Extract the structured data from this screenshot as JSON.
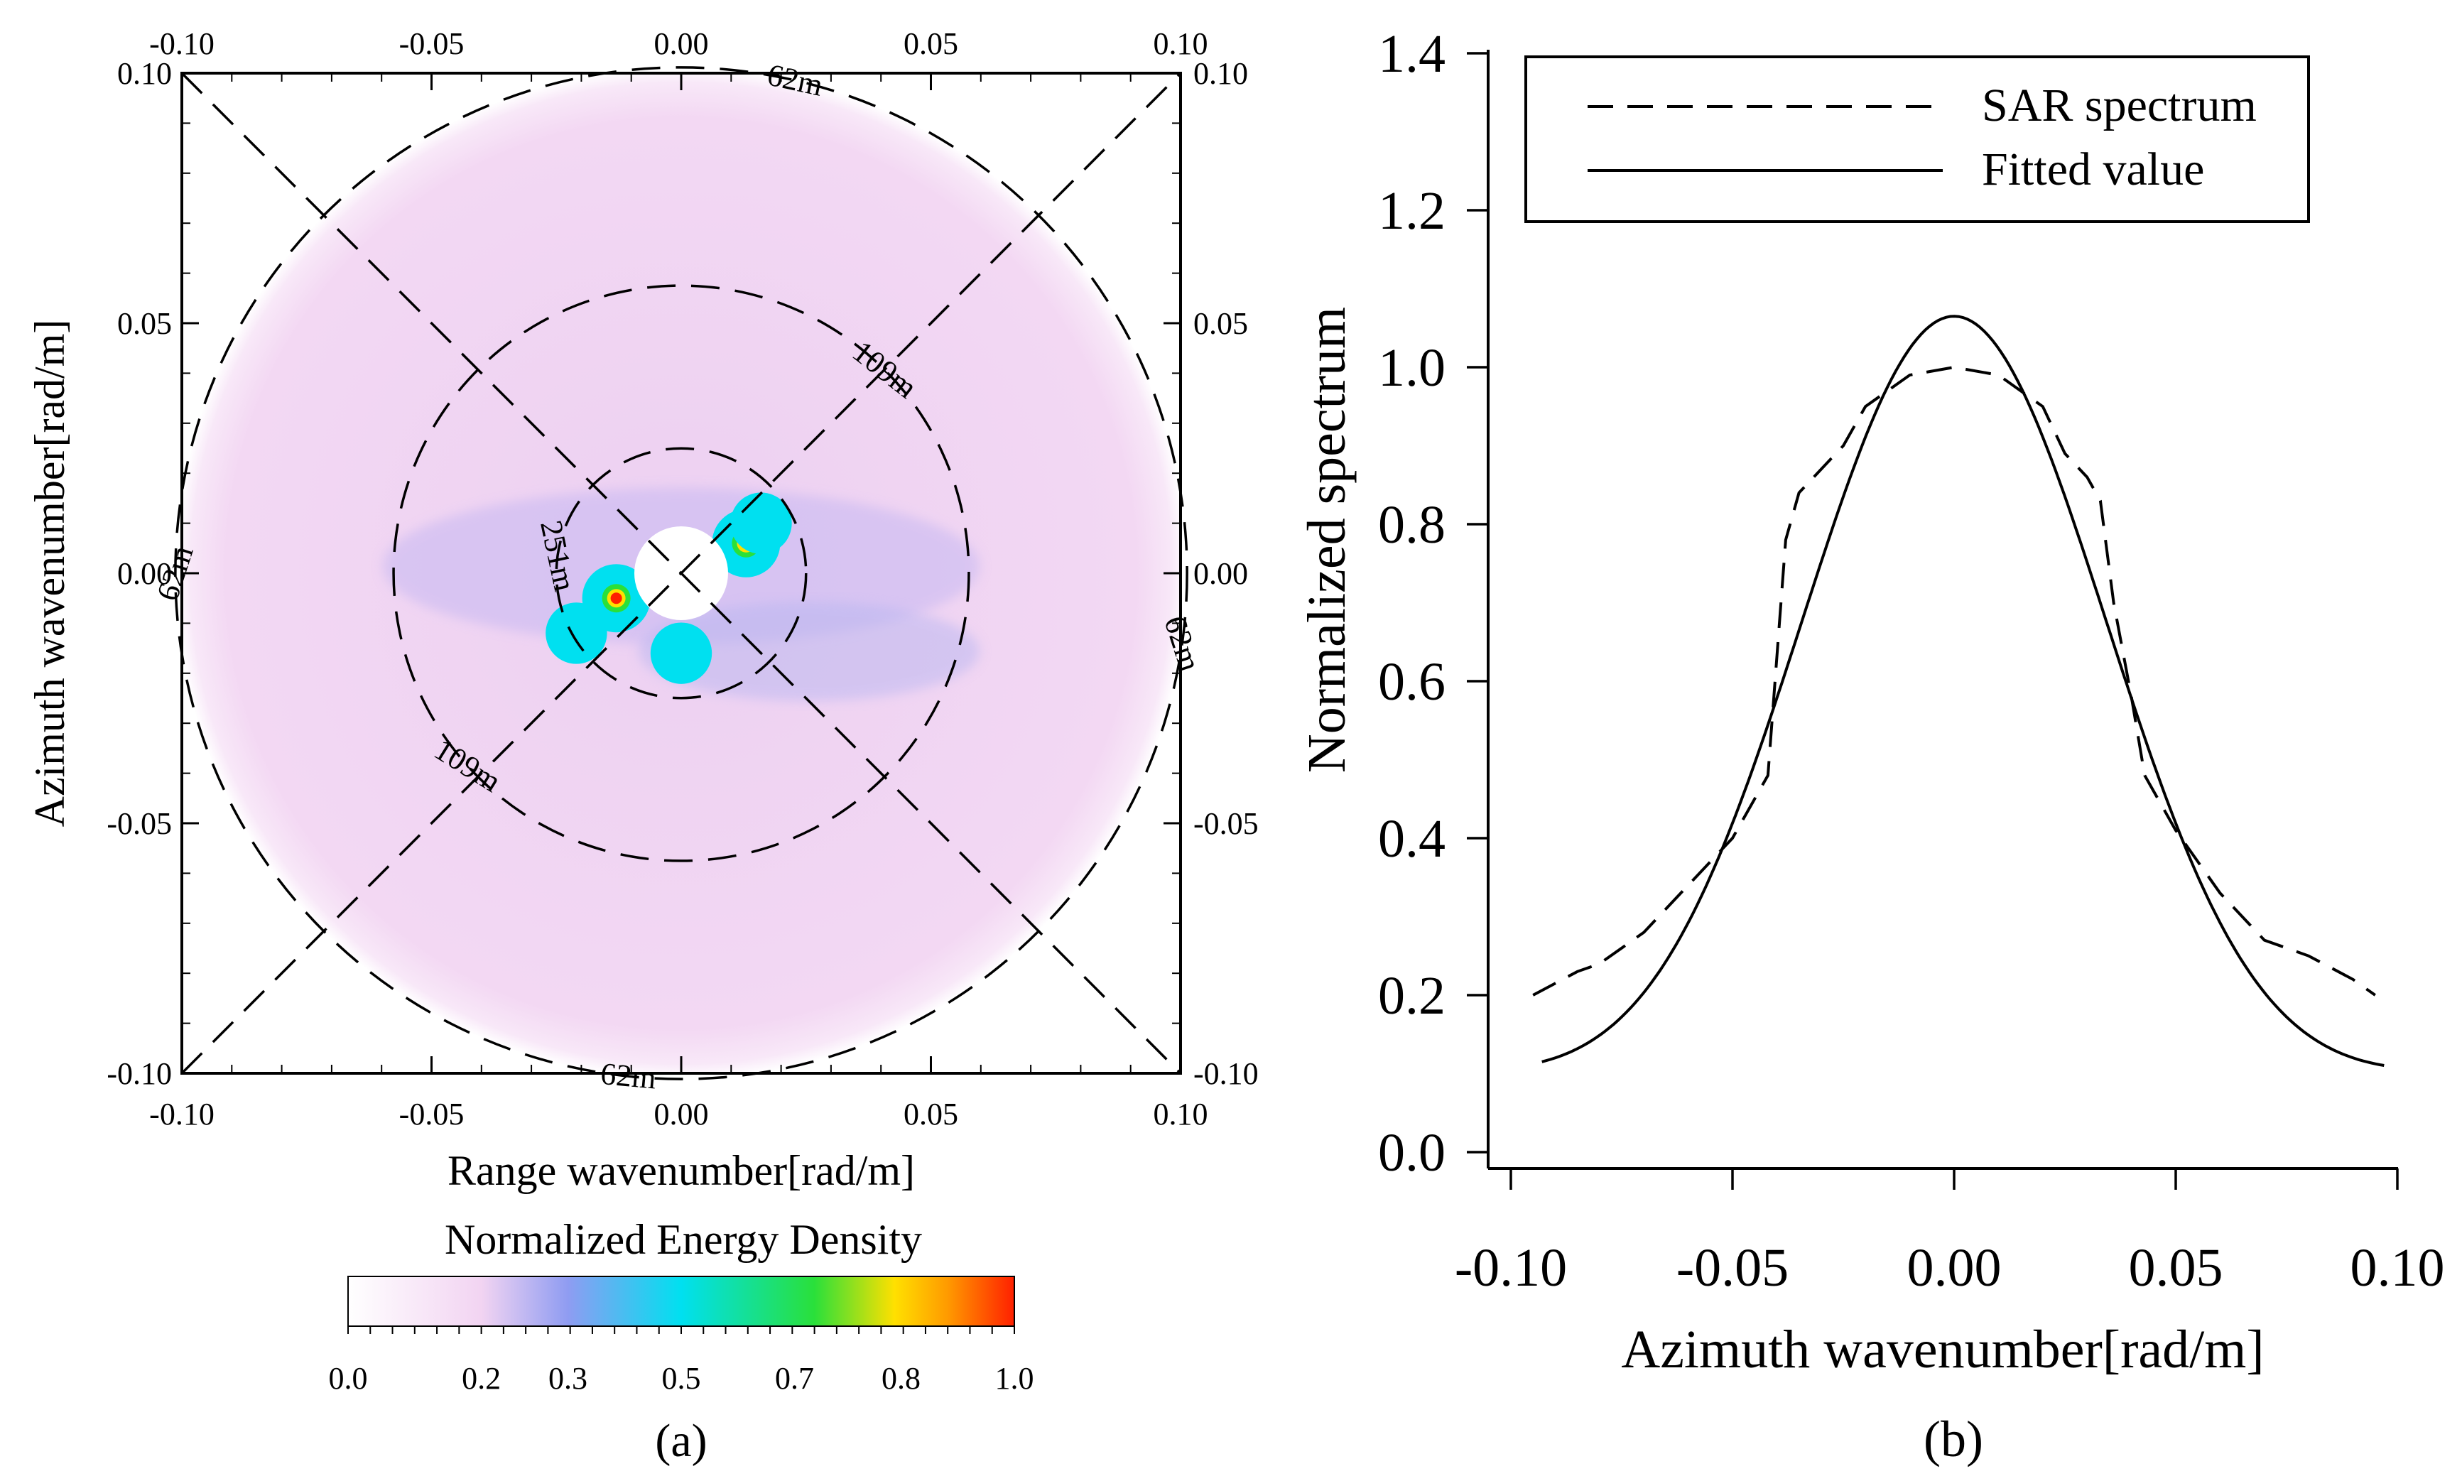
{
  "chart_data": [
    {
      "type": "heatmap",
      "panel_label": "(a)",
      "xlabel": "Range wavenumber[rad/m]",
      "ylabel": "Azimuth wavenumber[rad/m]",
      "xlim": [
        -0.1,
        0.1
      ],
      "ylim": [
        -0.1,
        0.1
      ],
      "x_ticks": [
        "-0.10",
        "-0.05",
        "0.00",
        "0.05",
        "0.10"
      ],
      "y_ticks": [
        "0.10",
        "0.05",
        "0.00",
        "-0.05",
        "-0.10"
      ],
      "colorbar": {
        "title": "Normalized Energy Density",
        "ticks": [
          "0.0",
          "0.2",
          "0.3",
          "0.5",
          "0.7",
          "0.8",
          "1.0"
        ],
        "colors": [
          "#ffffff",
          "#f2d4f2",
          "#8f9cf2",
          "#00e0f0",
          "#2ae03a",
          "#ffe000",
          "#ff9a00",
          "#ff2000"
        ]
      },
      "circles": [
        {
          "label": "251m",
          "wavenumber": 0.025
        },
        {
          "label": "109m",
          "wavenumber": 0.0576
        },
        {
          "label": "62m",
          "wavenumber": 0.1013
        }
      ],
      "circle_labels": [
        "62m",
        "109m",
        "251m",
        "62m",
        "109m",
        "62m",
        "62m"
      ],
      "diagonals": true,
      "peaks": [
        {
          "x": 0.013,
          "y": 0.006,
          "value": 1.0
        },
        {
          "x": -0.013,
          "y": -0.005,
          "value": 0.95
        },
        {
          "x": 0.0,
          "y": -0.016,
          "value": 0.5
        },
        {
          "x": 0.016,
          "y": 0.01,
          "value": 0.45
        },
        {
          "x": -0.021,
          "y": -0.012,
          "value": 0.45
        }
      ],
      "background_level": 0.2
    },
    {
      "type": "line",
      "panel_label": "(b)",
      "xlabel": "Azimuth wavenumber[rad/m]",
      "ylabel": "Normalized spectrum",
      "xlim": [
        -0.1,
        0.1
      ],
      "ylim": [
        0,
        1.4
      ],
      "x_ticks": [
        "-0.10",
        "-0.05",
        "0.00",
        "0.05",
        "0.10"
      ],
      "y_ticks": [
        "0.0",
        "0.2",
        "0.4",
        "0.6",
        "0.8",
        "1.0",
        "1.2",
        "1.4"
      ],
      "legend_position": "top",
      "series": [
        {
          "name": "SAR spectrum",
          "style": "dashed",
          "x": [
            -0.095,
            -0.085,
            -0.08,
            -0.07,
            -0.06,
            -0.05,
            -0.042,
            -0.038,
            -0.035,
            -0.03,
            -0.025,
            -0.02,
            -0.01,
            0.0,
            0.01,
            0.02,
            0.025,
            0.03,
            0.033,
            0.036,
            0.04,
            0.043,
            0.05,
            0.06,
            0.07,
            0.08,
            0.09,
            0.095
          ],
          "y": [
            0.2,
            0.23,
            0.24,
            0.28,
            0.34,
            0.4,
            0.48,
            0.78,
            0.84,
            0.87,
            0.9,
            0.95,
            0.99,
            1.0,
            0.99,
            0.95,
            0.89,
            0.86,
            0.83,
            0.7,
            0.58,
            0.48,
            0.41,
            0.33,
            0.27,
            0.25,
            0.22,
            0.2
          ]
        },
        {
          "name": "Fitted value",
          "style": "solid",
          "gaussian": {
            "amplitude": 1.065,
            "sigma": 0.035,
            "offset": 0.0
          },
          "x_range": [
            -0.093,
            0.097
          ]
        }
      ]
    }
  ],
  "legend": {
    "items": [
      "SAR spectrum",
      "Fitted value"
    ]
  }
}
